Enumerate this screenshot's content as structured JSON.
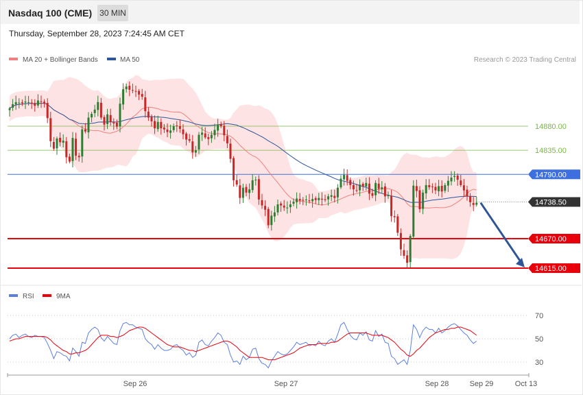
{
  "header": {
    "title": "Nasdaq 100 (CME)",
    "interval": "30 MIN",
    "datetime": "Thursday, September 28, 2023 7:24:45 AM CET"
  },
  "legend": {
    "ma20_label": "MA 20 + Bollinger Bands",
    "ma20_color": "#f08080",
    "ma50_label": "MA 50",
    "ma50_color": "#2e5597",
    "credit": "Research © 2023 Trading Central"
  },
  "rsi_legend": {
    "rsi_label": "RSI",
    "rsi_color": "#5b7fdc",
    "ma_label": "9MA",
    "ma_color": "#e8000b"
  },
  "chart_data": [
    {
      "type": "candlestick",
      "title": "Nasdaq 100 (CME)",
      "x_tick_labels": [
        "Sep 26",
        "Sep 27",
        "Sep 28",
        "Sep 29",
        "Oct 13"
      ],
      "levels": [
        {
          "value": 14880.0,
          "label": "14880.00",
          "kind": "resistance",
          "color": "#7ab648"
        },
        {
          "value": 14835.0,
          "label": "14835.00",
          "kind": "resistance",
          "color": "#7ab648"
        },
        {
          "value": 14790.0,
          "label": "14790.00",
          "kind": "pivot",
          "color": "#3d6fe0"
        },
        {
          "value": 14738.5,
          "label": "14738.50",
          "kind": "last",
          "color": "#333333"
        },
        {
          "value": 14670.0,
          "label": "14670.00",
          "kind": "support",
          "color": "#e8000b"
        },
        {
          "value": 14615.0,
          "label": "14615.00",
          "kind": "support",
          "color": "#e8000b"
        }
      ],
      "series": [
        {
          "name": "MA 20 + Bollinger Bands"
        },
        {
          "name": "MA 50"
        }
      ],
      "closes": [
        14913,
        14921,
        14925,
        14924,
        14923,
        14926,
        14925,
        14922,
        14918,
        14928,
        14926,
        14922,
        14895,
        14852,
        14838,
        14857,
        14850,
        14853,
        14822,
        14814,
        14858,
        14825,
        14822,
        14874,
        14870,
        14896,
        14903,
        14911,
        14925,
        14896,
        14883,
        14902,
        14888,
        14885,
        14879,
        14922,
        14949,
        14954,
        14948,
        14947,
        14945,
        14939,
        14935,
        14908,
        14896,
        14889,
        14876,
        14888,
        14876,
        14874,
        14869,
        14872,
        14880,
        14881,
        14875,
        14865,
        14855,
        14853,
        14831,
        14835,
        14864,
        14868,
        14859,
        14856,
        14864,
        14873,
        14883,
        14880,
        14863,
        14848,
        14819,
        14779,
        14771,
        14746,
        14765,
        14756,
        14762,
        14779,
        14780,
        14743,
        14732,
        14724,
        14695,
        14713,
        14719,
        14734,
        14732,
        14728,
        14728,
        14734,
        14739,
        14745,
        14741,
        14742,
        14743,
        14740,
        14744,
        14742,
        14746,
        14743,
        14742,
        14749,
        14751,
        14746,
        14765,
        14782,
        14789,
        14778,
        14770,
        14762,
        14760,
        14771,
        14768,
        14774,
        14754,
        14750,
        14774,
        14763,
        14766,
        14749,
        14751,
        14712,
        14710,
        14681,
        14650,
        14638,
        14625,
        14675,
        14769,
        14759,
        14725,
        14756,
        14770,
        14766,
        14767,
        14760,
        14768,
        14758,
        14770,
        14778,
        14784,
        14787,
        14780,
        14770,
        14760,
        14749,
        14738,
        14733,
        14737
      ],
      "rsi_panel": {
        "series": [
          {
            "name": "RSI"
          },
          {
            "name": "9MA"
          }
        ],
        "ylim": [
          20,
          80
        ],
        "y_tick_labels": [
          "70",
          "50",
          "30"
        ],
        "rsi": [
          50,
          53,
          54,
          51,
          53,
          54,
          52,
          51,
          53,
          52,
          52,
          51,
          46,
          40,
          33,
          39,
          38,
          36,
          35,
          31,
          42,
          39,
          35,
          47,
          46,
          55,
          58,
          60,
          58,
          51,
          48,
          52,
          49,
          46,
          45,
          57,
          63,
          64,
          62,
          62,
          60,
          59,
          58,
          50,
          47,
          45,
          41,
          45,
          42,
          40,
          40,
          41,
          44,
          45,
          42,
          40,
          36,
          38,
          34,
          36,
          47,
          49,
          45,
          44,
          48,
          51,
          55,
          53,
          47,
          45,
          36,
          30,
          31,
          28,
          35,
          32,
          34,
          41,
          42,
          33,
          29,
          28,
          25,
          31,
          35,
          39,
          37,
          36,
          37,
          40,
          43,
          47,
          45,
          46,
          47,
          44,
          45,
          44,
          48,
          45,
          44,
          48,
          50,
          47,
          54,
          62,
          64,
          58,
          53,
          50,
          49,
          55,
          53,
          56,
          49,
          48,
          57,
          52,
          54,
          47,
          46,
          35,
          33,
          28,
          30,
          32,
          28,
          40,
          62,
          58,
          51,
          57,
          60,
          58,
          58,
          55,
          59,
          55,
          57,
          60,
          62,
          63,
          61,
          58,
          55,
          53,
          49,
          46,
          48
        ],
        "ma9": [
          48,
          49,
          50,
          50,
          51,
          52,
          52,
          52,
          52,
          52,
          52,
          52,
          51,
          49,
          46,
          44,
          42,
          40,
          39,
          37,
          37,
          38,
          38,
          39,
          40,
          42,
          45,
          48,
          51,
          53,
          53,
          53,
          52,
          52,
          51,
          52,
          53,
          55,
          57,
          58,
          59,
          60,
          60,
          59,
          57,
          55,
          53,
          51,
          49,
          47,
          45,
          44,
          43,
          43,
          43,
          42,
          41,
          40,
          40,
          39,
          40,
          41,
          42,
          43,
          44,
          45,
          46,
          47,
          48,
          48,
          47,
          45,
          43,
          40,
          38,
          36,
          34,
          34,
          34,
          34,
          34,
          33,
          32,
          32,
          32,
          33,
          34,
          35,
          36,
          37,
          38,
          40,
          42,
          43,
          44,
          45,
          45,
          45,
          46,
          46,
          46,
          46,
          47,
          47,
          48,
          50,
          52,
          54,
          55,
          55,
          55,
          55,
          55,
          55,
          54,
          53,
          53,
          53,
          53,
          52,
          51,
          49,
          47,
          44,
          41,
          39,
          36,
          35,
          37,
          40,
          42,
          45,
          48,
          51,
          53,
          55,
          56,
          57,
          58,
          58,
          59,
          59,
          60,
          60,
          59,
          58,
          57,
          55,
          53
        ]
      }
    }
  ]
}
